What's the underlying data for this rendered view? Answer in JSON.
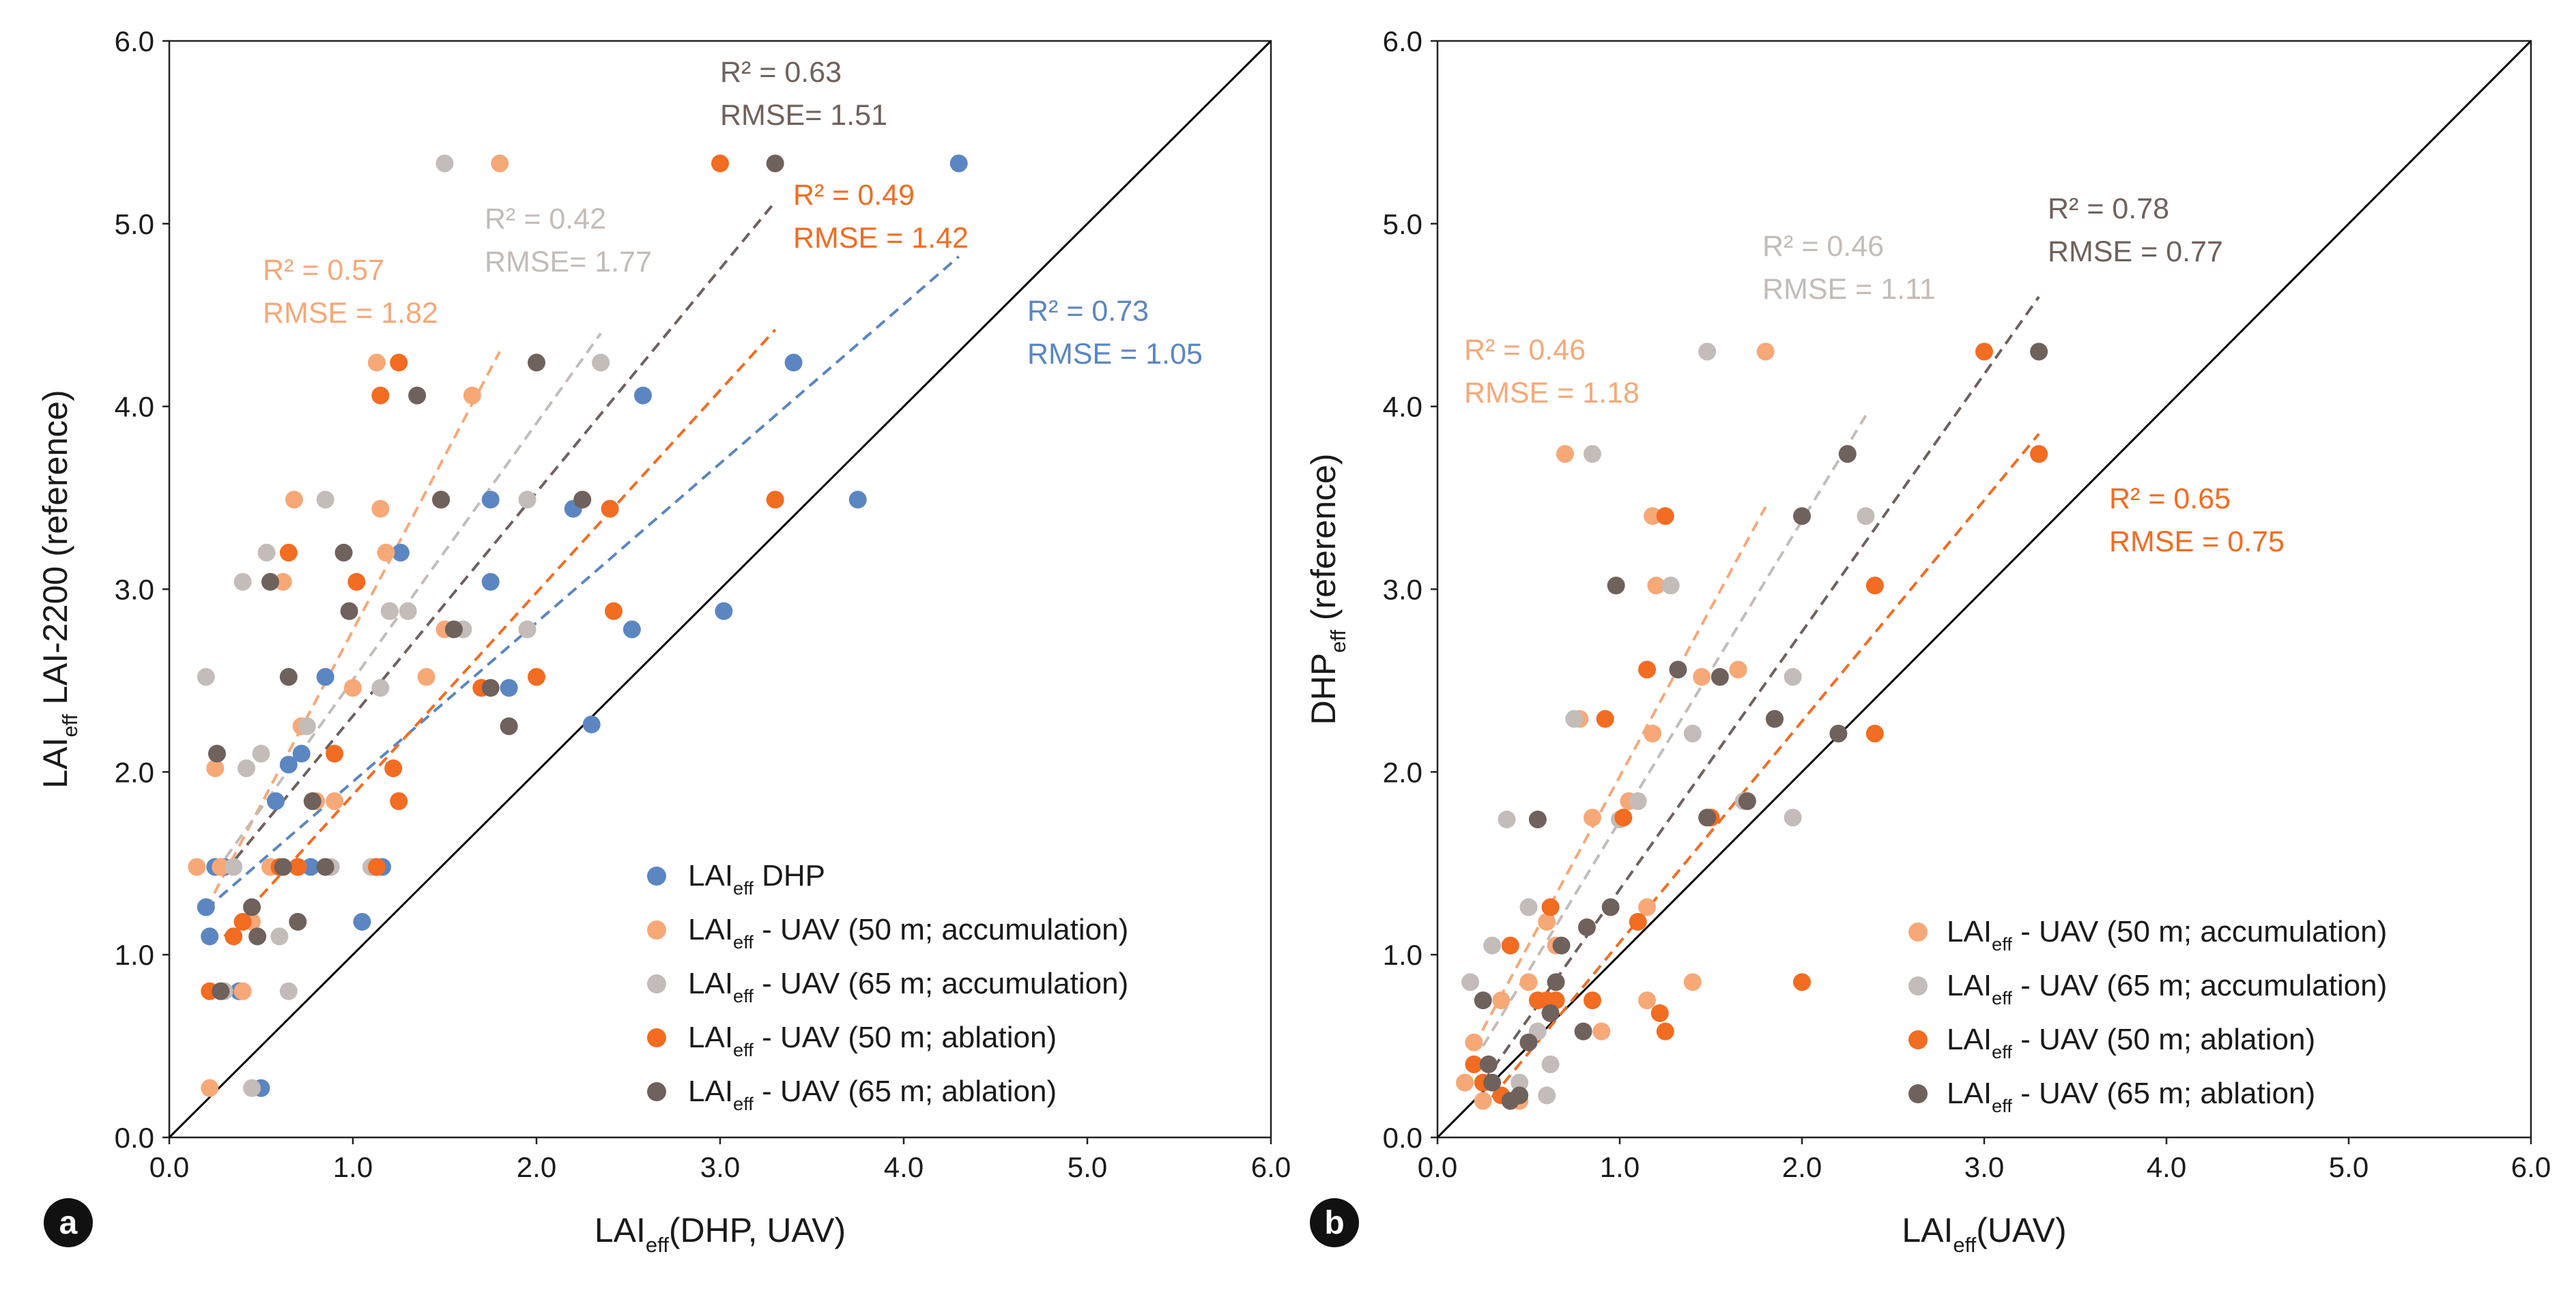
{
  "colors": {
    "dhp": "#5b86c1",
    "uav50acc": "#f7a877",
    "uav65acc": "#c3bcb8",
    "uav50abl": "#f26c21",
    "uav65abl": "#6f615c",
    "oneToOne": "#000000",
    "panelLabelBg": "#111111",
    "panelLabelText": "#ffffff"
  },
  "chart_data": [
    {
      "type": "scatter",
      "panel_label": "a",
      "xlabel": {
        "base": "LAI",
        "sub": "eff",
        "rest": "(DHP, UAV)"
      },
      "ylabel": {
        "base": "LAI",
        "sub": "eff",
        "rest": " LAI-2200 (reference)"
      },
      "xlim": [
        0,
        6
      ],
      "ylim": [
        0,
        6
      ],
      "xticks": [
        "0.0",
        "1.0",
        "2.0",
        "3.0",
        "4.0",
        "5.0",
        "6.0"
      ],
      "yticks": [
        "0.0",
        "1.0",
        "2.0",
        "3.0",
        "4.0",
        "5.0",
        "6.0"
      ],
      "one_to_one_line": true,
      "legend_position": "bottom-right",
      "series": [
        {
          "key": "dhp",
          "legend": {
            "base": "LAI",
            "sub": "eff",
            "rest": " DHP"
          },
          "points": [
            [
              0.2,
              1.26
            ],
            [
              0.22,
              1.1
            ],
            [
              0.25,
              1.48
            ],
            [
              0.3,
              1.48
            ],
            [
              0.38,
              0.8
            ],
            [
              0.5,
              0.27
            ],
            [
              0.58,
              1.84
            ],
            [
              0.65,
              2.04
            ],
            [
              0.7,
              1.48
            ],
            [
              0.72,
              2.1
            ],
            [
              0.77,
              1.48
            ],
            [
              0.85,
              2.52
            ],
            [
              1.05,
              1.18
            ],
            [
              1.16,
              1.48
            ],
            [
              1.26,
              3.2
            ],
            [
              1.75,
              3.49
            ],
            [
              1.75,
              3.04
            ],
            [
              1.85,
              2.46
            ],
            [
              2.2,
              3.44
            ],
            [
              2.3,
              2.26
            ],
            [
              2.52,
              2.78
            ],
            [
              2.58,
              4.06
            ],
            [
              3.02,
              2.88
            ],
            [
              3.4,
              4.24
            ],
            [
              3.75,
              3.49
            ],
            [
              4.3,
              5.33
            ]
          ],
          "trend": [
            [
              0.2,
              1.25
            ],
            [
              4.3,
              4.82
            ]
          ],
          "r2": "R² = 0.73",
          "rmse": "RMSE = 1.05"
        },
        {
          "key": "uav50acc",
          "legend": {
            "base": "LAI",
            "sub": "eff",
            "rest": " - UAV (50 m; accumulation)"
          },
          "points": [
            [
              0.15,
              1.48
            ],
            [
              0.22,
              0.27
            ],
            [
              0.25,
              2.02
            ],
            [
              0.28,
              1.48
            ],
            [
              0.4,
              0.8
            ],
            [
              0.45,
              1.18
            ],
            [
              0.55,
              1.48
            ],
            [
              0.62,
              3.04
            ],
            [
              0.68,
              3.49
            ],
            [
              0.72,
              2.25
            ],
            [
              0.8,
              1.84
            ],
            [
              0.9,
              1.84
            ],
            [
              1.0,
              2.46
            ],
            [
              1.12,
              1.48
            ],
            [
              1.13,
              4.24
            ],
            [
              1.15,
              3.44
            ],
            [
              1.18,
              3.2
            ],
            [
              1.2,
              2.88
            ],
            [
              1.4,
              2.52
            ],
            [
              1.5,
              2.78
            ],
            [
              1.65,
              4.06
            ],
            [
              1.8,
              5.33
            ]
          ],
          "trend": [
            [
              0.2,
              1.25
            ],
            [
              1.8,
              4.3
            ]
          ],
          "r2": "R² = 0.57",
          "rmse": "RMSE = 1.82"
        },
        {
          "key": "uav65acc",
          "legend": {
            "base": "LAI",
            "sub": "eff",
            "rest": " - UAV (65 m; accumulation)"
          },
          "points": [
            [
              0.2,
              2.52
            ],
            [
              0.3,
              0.8
            ],
            [
              0.35,
              1.48
            ],
            [
              0.4,
              3.04
            ],
            [
              0.42,
              2.02
            ],
            [
              0.45,
              0.27
            ],
            [
              0.5,
              2.1
            ],
            [
              0.53,
              3.2
            ],
            [
              0.6,
              1.1
            ],
            [
              0.65,
              0.8
            ],
            [
              0.7,
              1.48
            ],
            [
              0.75,
              2.25
            ],
            [
              0.85,
              3.49
            ],
            [
              0.88,
              1.48
            ],
            [
              1.1,
              1.48
            ],
            [
              1.15,
              2.46
            ],
            [
              1.2,
              2.88
            ],
            [
              1.3,
              2.88
            ],
            [
              1.5,
              5.33
            ],
            [
              1.6,
              2.78
            ],
            [
              1.95,
              2.78
            ],
            [
              1.95,
              3.49
            ],
            [
              2.35,
              4.24
            ]
          ],
          "trend": [
            [
              0.25,
              1.45
            ],
            [
              2.35,
              4.4
            ]
          ],
          "r2": "R² = 0.42",
          "rmse": "RMSE= 1.77"
        },
        {
          "key": "uav50abl",
          "legend": {
            "base": "LAI",
            "sub": "eff",
            "rest": " - UAV (50 m; ablation)"
          },
          "points": [
            [
              0.22,
              0.8
            ],
            [
              0.35,
              1.1
            ],
            [
              0.4,
              1.18
            ],
            [
              0.6,
              1.48
            ],
            [
              0.65,
              3.2
            ],
            [
              0.7,
              1.48
            ],
            [
              0.9,
              2.1
            ],
            [
              1.02,
              3.04
            ],
            [
              1.13,
              1.48
            ],
            [
              1.15,
              4.06
            ],
            [
              1.22,
              2.02
            ],
            [
              1.25,
              1.84
            ],
            [
              1.25,
              4.24
            ],
            [
              1.48,
              3.49
            ],
            [
              1.7,
              2.46
            ],
            [
              2.0,
              2.52
            ],
            [
              2.4,
              3.44
            ],
            [
              2.42,
              2.88
            ],
            [
              3.0,
              5.33
            ],
            [
              3.3,
              3.49
            ]
          ],
          "trend": [
            [
              0.3,
              1.1
            ],
            [
              3.3,
              4.42
            ]
          ],
          "r2": "R² = 0.49",
          "rmse": "RMSE = 1.42"
        },
        {
          "key": "uav65abl",
          "legend": {
            "base": "LAI",
            "sub": "eff",
            "rest": " - UAV (65 m; ablation)"
          },
          "points": [
            [
              0.26,
              2.1
            ],
            [
              0.28,
              0.8
            ],
            [
              0.45,
              1.26
            ],
            [
              0.48,
              1.1
            ],
            [
              0.55,
              3.04
            ],
            [
              0.62,
              1.48
            ],
            [
              0.65,
              2.52
            ],
            [
              0.7,
              1.18
            ],
            [
              0.78,
              1.84
            ],
            [
              0.85,
              1.48
            ],
            [
              0.95,
              3.2
            ],
            [
              0.98,
              2.88
            ],
            [
              1.35,
              4.06
            ],
            [
              1.48,
              3.49
            ],
            [
              1.55,
              2.78
            ],
            [
              1.75,
              2.46
            ],
            [
              1.85,
              2.25
            ],
            [
              2.0,
              4.24
            ],
            [
              2.25,
              3.49
            ],
            [
              3.3,
              5.33
            ]
          ],
          "trend": [
            [
              0.3,
              1.45
            ],
            [
              3.3,
              5.12
            ]
          ],
          "r2": "R² = 0.63",
          "rmse": "RMSE= 1.51"
        }
      ]
    },
    {
      "type": "scatter",
      "panel_label": "b",
      "xlabel": {
        "base": "LAI",
        "sub": "eff",
        "rest": "(UAV)"
      },
      "ylabel": {
        "base": "DHP",
        "sub": "eff",
        "rest": " (reference)"
      },
      "xlim": [
        0,
        6
      ],
      "ylim": [
        0,
        6
      ],
      "xticks": [
        "0.0",
        "1.0",
        "2.0",
        "3.0",
        "4.0",
        "5.0",
        "6.0"
      ],
      "yticks": [
        "0.0",
        "1.0",
        "2.0",
        "3.0",
        "4.0",
        "5.0",
        "6.0"
      ],
      "one_to_one_line": true,
      "legend_position": "bottom-right",
      "series": [
        {
          "key": "uav50acc",
          "legend": {
            "base": "LAI",
            "sub": "eff",
            "rest": " - UAV (50 m; accumulation)"
          },
          "points": [
            [
              0.15,
              0.3
            ],
            [
              0.2,
              0.52
            ],
            [
              0.25,
              0.2
            ],
            [
              0.35,
              0.75
            ],
            [
              0.45,
              0.2
            ],
            [
              0.5,
              0.85
            ],
            [
              0.6,
              1.18
            ],
            [
              0.65,
              1.05
            ],
            [
              0.7,
              3.74
            ],
            [
              0.78,
              2.29
            ],
            [
              0.85,
              1.75
            ],
            [
              0.9,
              0.58
            ],
            [
              1.05,
              1.84
            ],
            [
              1.15,
              0.75
            ],
            [
              1.15,
              1.26
            ],
            [
              1.18,
              2.21
            ],
            [
              1.18,
              3.4
            ],
            [
              1.2,
              3.02
            ],
            [
              1.4,
              0.85
            ],
            [
              1.45,
              2.52
            ],
            [
              1.65,
              2.56
            ],
            [
              1.8,
              4.3
            ]
          ],
          "trend": [
            [
              0.2,
              0.5
            ],
            [
              1.8,
              3.45
            ]
          ],
          "r2": "R² = 0.46",
          "rmse": "RMSE = 1.18"
        },
        {
          "key": "uav65acc",
          "legend": {
            "base": "LAI",
            "sub": "eff",
            "rest": " - UAV (65 m; accumulation)"
          },
          "points": [
            [
              0.18,
              0.85
            ],
            [
              0.3,
              1.05
            ],
            [
              0.38,
              1.74
            ],
            [
              0.45,
              0.3
            ],
            [
              0.5,
              1.26
            ],
            [
              0.55,
              0.58
            ],
            [
              0.6,
              0.23
            ],
            [
              0.62,
              0.4
            ],
            [
              0.75,
              2.29
            ],
            [
              0.85,
              3.74
            ],
            [
              1.0,
              1.74
            ],
            [
              1.1,
              1.84
            ],
            [
              1.28,
              3.02
            ],
            [
              1.4,
              2.21
            ],
            [
              1.48,
              4.3
            ],
            [
              1.68,
              1.84
            ],
            [
              1.95,
              2.52
            ],
            [
              1.95,
              1.75
            ],
            [
              2.35,
              3.4
            ]
          ],
          "trend": [
            [
              0.25,
              0.5
            ],
            [
              2.35,
              3.95
            ]
          ],
          "r2": "R² = 0.46",
          "rmse": "RMSE = 1.11"
        },
        {
          "key": "uav50abl",
          "legend": {
            "base": "LAI",
            "sub": "eff",
            "rest": " - UAV (50 m; ablation)"
          },
          "points": [
            [
              0.2,
              0.4
            ],
            [
              0.25,
              0.3
            ],
            [
              0.35,
              0.23
            ],
            [
              0.4,
              1.05
            ],
            [
              0.55,
              0.75
            ],
            [
              0.6,
              0.75
            ],
            [
              0.62,
              1.26
            ],
            [
              0.65,
              0.75
            ],
            [
              0.85,
              0.75
            ],
            [
              0.92,
              2.29
            ],
            [
              1.02,
              1.75
            ],
            [
              1.1,
              1.18
            ],
            [
              1.15,
              2.56
            ],
            [
              1.22,
              0.68
            ],
            [
              1.25,
              0.58
            ],
            [
              1.25,
              3.4
            ],
            [
              1.5,
              1.75
            ],
            [
              1.85,
              2.29
            ],
            [
              2.0,
              0.85
            ],
            [
              2.4,
              2.21
            ],
            [
              2.4,
              3.02
            ],
            [
              3.0,
              4.3
            ],
            [
              3.3,
              3.74
            ]
          ],
          "trend": [
            [
              0.3,
              0.22
            ],
            [
              3.3,
              3.85
            ]
          ],
          "r2": "R² = 0.65",
          "rmse": "RMSE = 0.75"
        },
        {
          "key": "uav65abl",
          "legend": {
            "base": "LAI",
            "sub": "eff",
            "rest": " - UAV (65 m; ablation)"
          },
          "points": [
            [
              0.25,
              0.75
            ],
            [
              0.28,
              0.4
            ],
            [
              0.3,
              0.3
            ],
            [
              0.4,
              0.2
            ],
            [
              0.45,
              0.23
            ],
            [
              0.5,
              0.52
            ],
            [
              0.55,
              1.74
            ],
            [
              0.62,
              0.68
            ],
            [
              0.65,
              0.85
            ],
            [
              0.68,
              1.05
            ],
            [
              0.8,
              0.58
            ],
            [
              0.82,
              1.15
            ],
            [
              0.95,
              1.26
            ],
            [
              0.98,
              3.02
            ],
            [
              1.32,
              2.56
            ],
            [
              1.48,
              1.75
            ],
            [
              1.55,
              2.52
            ],
            [
              1.7,
              1.84
            ],
            [
              1.85,
              2.29
            ],
            [
              2.0,
              3.4
            ],
            [
              2.2,
              2.21
            ],
            [
              2.25,
              3.74
            ],
            [
              3.3,
              4.3
            ]
          ],
          "trend": [
            [
              0.25,
              0.3
            ],
            [
              3.3,
              4.6
            ]
          ],
          "r2": "R² = 0.78",
          "rmse": "RMSE = 0.77"
        }
      ]
    }
  ]
}
